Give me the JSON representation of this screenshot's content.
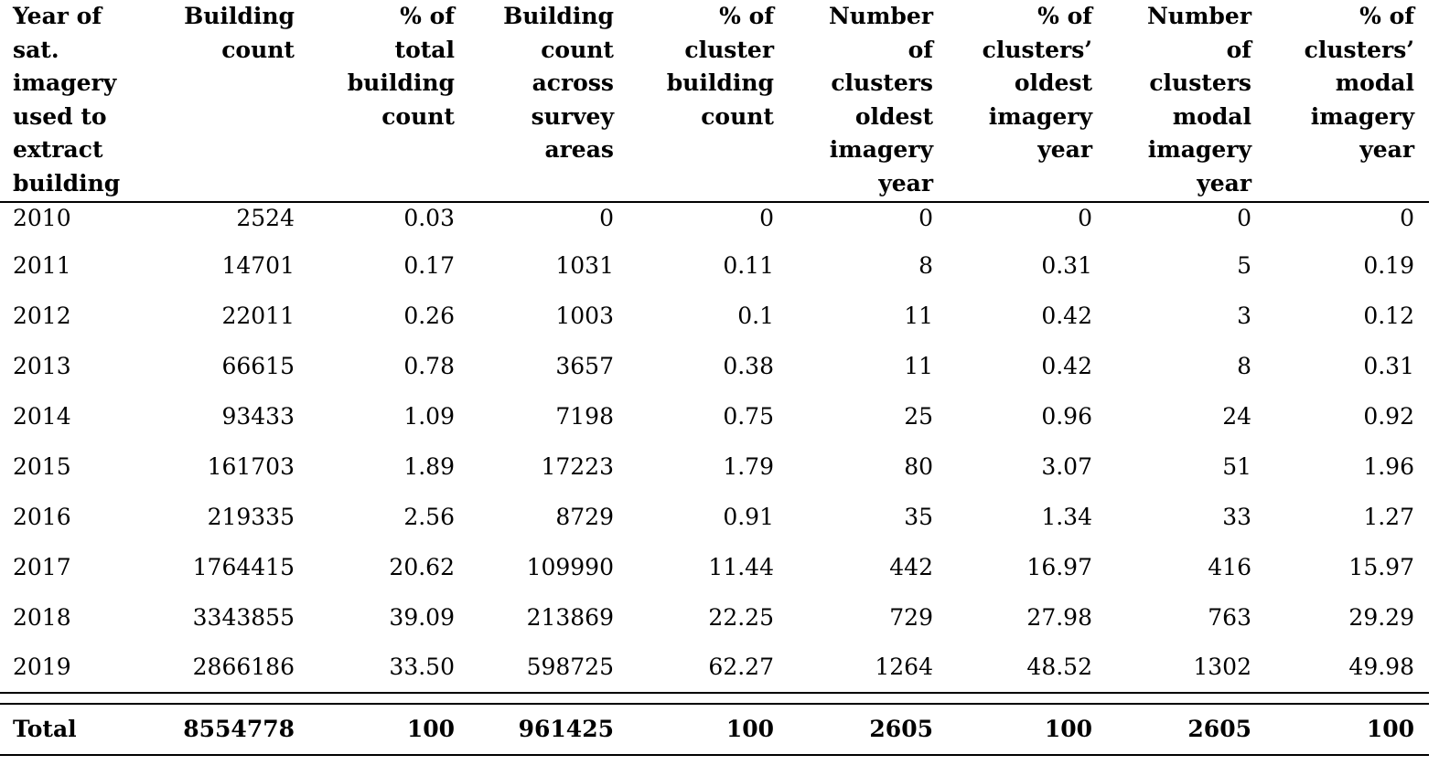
{
  "table": {
    "headers": [
      "Year of\nsat.\nimagery\nused to\nextract\nbuilding",
      "Building\ncount",
      "% of\ntotal\nbuilding\ncount",
      "Building\ncount\nacross\nsurvey\nareas",
      "% of\ncluster\nbuilding\ncount",
      "Number\nof\nclusters\noldest\nimagery\nyear",
      "% of\nclusters’\noldest\nimagery\nyear",
      "Number\nof\nclusters\nmodal\nimagery\nyear",
      "% of\nclusters’\nmodal\nimagery\nyear"
    ],
    "rows": [
      [
        "2010",
        "2524",
        "0.03",
        "0",
        "0",
        "0",
        "0",
        "0",
        "0"
      ],
      [
        "2011",
        "14701",
        "0.17",
        "1031",
        "0.11",
        "8",
        "0.31",
        "5",
        "0.19"
      ],
      [
        "2012",
        "22011",
        "0.26",
        "1003",
        "0.1",
        "11",
        "0.42",
        "3",
        "0.12"
      ],
      [
        "2013",
        "66615",
        "0.78",
        "3657",
        "0.38",
        "11",
        "0.42",
        "8",
        "0.31"
      ],
      [
        "2014",
        "93433",
        "1.09",
        "7198",
        "0.75",
        "25",
        "0.96",
        "24",
        "0.92"
      ],
      [
        "2015",
        "161703",
        "1.89",
        "17223",
        "1.79",
        "80",
        "3.07",
        "51",
        "1.96"
      ],
      [
        "2016",
        "219335",
        "2.56",
        "8729",
        "0.91",
        "35",
        "1.34",
        "33",
        "1.27"
      ],
      [
        "2017",
        "1764415",
        "20.62",
        "109990",
        "11.44",
        "442",
        "16.97",
        "416",
        "15.97"
      ],
      [
        "2018",
        "3343855",
        "39.09",
        "213869",
        "22.25",
        "729",
        "27.98",
        "763",
        "29.29"
      ],
      [
        "2019",
        "2866186",
        "33.50",
        "598725",
        "62.27",
        "1264",
        "48.52",
        "1302",
        "49.98"
      ]
    ],
    "total": [
      "Total",
      "8554778",
      "100",
      "961425",
      "100",
      "2605",
      "100",
      "2605",
      "100"
    ]
  }
}
